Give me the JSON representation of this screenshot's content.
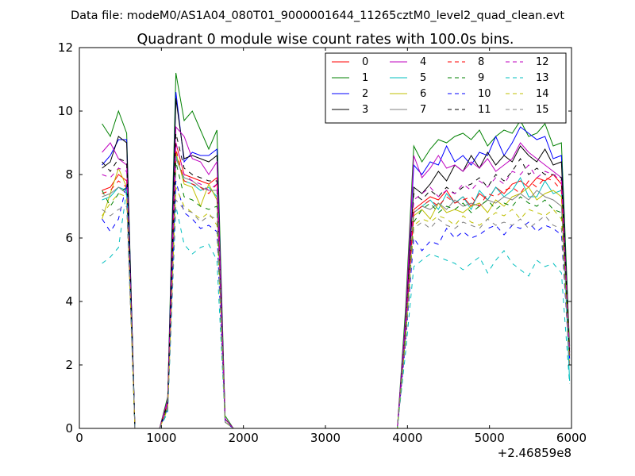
{
  "suptitle": "Data file: modeM0/AS1A04_080T01_9000001644_11265cztM0_level2_quad_clean.evt",
  "chart_data": {
    "type": "line",
    "title": "Quadrant 0 module wise count rates with 100.0s bins.",
    "xlabel": "",
    "ylabel": "",
    "x_offset_label": "+2.46859e8",
    "xlim": [
      0,
      6000
    ],
    "ylim": [
      0,
      12
    ],
    "xticks": [
      0,
      1000,
      2000,
      3000,
      4000,
      5000,
      6000
    ],
    "yticks": [
      0,
      2,
      4,
      6,
      8,
      10,
      12
    ],
    "grid": false,
    "legend_position": "top-right",
    "legend_ncols": 4,
    "x": [
      277,
      377,
      477,
      577,
      677,
      777,
      877,
      977,
      1077,
      1177,
      1277,
      1377,
      1477,
      1577,
      1677,
      1777,
      1877,
      1977,
      2077,
      2177,
      2277,
      2377,
      2477,
      2577,
      2677,
      2777,
      2877,
      2977,
      3077,
      3177,
      3277,
      3377,
      3477,
      3577,
      3677,
      3777,
      3877,
      3977,
      4077,
      4177,
      4277,
      4377,
      4477,
      4577,
      4677,
      4777,
      4877,
      4977,
      5077,
      5177,
      5277,
      5377,
      5477,
      5577,
      5677,
      5777,
      5877,
      5977
    ],
    "series": [
      {
        "name": "0",
        "color": "#ff0000",
        "dash": "solid",
        "values": [
          7.5,
          7.6,
          8.0,
          7.8,
          0,
          0,
          0,
          0,
          0.8,
          9.0,
          8.0,
          7.9,
          7.8,
          7.7,
          7.9,
          0.3,
          0,
          0,
          0,
          0,
          0,
          0,
          0,
          0,
          0,
          0,
          0,
          0,
          0,
          0,
          0,
          0,
          0,
          0,
          0,
          0,
          0,
          3.2,
          6.9,
          7.1,
          7.3,
          7.2,
          7.5,
          7.1,
          7.3,
          7.0,
          7.4,
          7.2,
          7.6,
          7.4,
          7.7,
          7.8,
          7.6,
          7.9,
          7.8,
          8.0,
          7.7,
          2.5
        ]
      },
      {
        "name": "1",
        "color": "#008000",
        "dash": "solid",
        "values": [
          9.6,
          9.2,
          10.0,
          9.3,
          0,
          0,
          0,
          0,
          1.0,
          11.2,
          9.7,
          10.0,
          9.4,
          8.8,
          9.4,
          0.4,
          0,
          0,
          0,
          0,
          0,
          0,
          0,
          0,
          0,
          0,
          0,
          0,
          0,
          0,
          0,
          0,
          0,
          0,
          0,
          0,
          0,
          3.8,
          8.9,
          8.4,
          8.8,
          9.1,
          9.0,
          9.2,
          9.3,
          9.1,
          9.4,
          8.9,
          9.2,
          9.4,
          9.3,
          9.7,
          9.2,
          9.3,
          9.6,
          8.9,
          9.0,
          2.6
        ]
      },
      {
        "name": "2",
        "color": "#0000ff",
        "dash": "solid",
        "values": [
          8.3,
          8.6,
          9.1,
          9.1,
          0,
          0,
          0,
          0,
          0.9,
          10.6,
          8.4,
          8.7,
          8.6,
          8.6,
          8.8,
          0.3,
          0,
          0,
          0,
          0,
          0,
          0,
          0,
          0,
          0,
          0,
          0,
          0,
          0,
          0,
          0,
          0,
          0,
          0,
          0,
          0,
          0,
          3.5,
          8.3,
          8.0,
          8.4,
          8.3,
          8.9,
          8.4,
          8.6,
          8.3,
          8.7,
          8.6,
          9.2,
          8.6,
          9.0,
          9.5,
          9.3,
          9.1,
          9.2,
          8.5,
          8.6,
          2.2
        ]
      },
      {
        "name": "3",
        "color": "#000000",
        "dash": "solid",
        "values": [
          8.2,
          8.4,
          9.2,
          9.0,
          0,
          0,
          0,
          0,
          0.8,
          10.4,
          8.5,
          8.6,
          8.5,
          8.4,
          8.6,
          0.3,
          0,
          0,
          0,
          0,
          0,
          0,
          0,
          0,
          0,
          0,
          0,
          0,
          0,
          0,
          0,
          0,
          0,
          0,
          0,
          0,
          0,
          3.4,
          7.6,
          7.4,
          7.7,
          8.1,
          7.8,
          8.3,
          8.1,
          8.6,
          8.2,
          8.7,
          8.3,
          8.6,
          8.4,
          8.9,
          8.6,
          8.4,
          8.8,
          8.3,
          8.4,
          2.3
        ]
      },
      {
        "name": "4",
        "color": "#bf00bf",
        "dash": "solid",
        "values": [
          8.7,
          9.0,
          8.5,
          8.3,
          0,
          0,
          0,
          0,
          0.9,
          9.5,
          9.2,
          8.5,
          8.4,
          8.0,
          8.4,
          0.3,
          0,
          0,
          0,
          0,
          0,
          0,
          0,
          0,
          0,
          0,
          0,
          0,
          0,
          0,
          0,
          0,
          0,
          0,
          0,
          0,
          0,
          3.5,
          8.6,
          7.9,
          8.2,
          8.6,
          8.2,
          8.3,
          8.1,
          8.4,
          8.2,
          8.5,
          8.1,
          8.3,
          8.5,
          9.0,
          8.7,
          8.5,
          8.3,
          8.1,
          7.9,
          2.4
        ]
      },
      {
        "name": "5",
        "color": "#00bfbf",
        "dash": "solid",
        "values": [
          7.2,
          7.3,
          7.6,
          7.5,
          0,
          0,
          0,
          0,
          0.7,
          8.6,
          7.8,
          7.7,
          7.5,
          7.6,
          7.3,
          0.2,
          0,
          0,
          0,
          0,
          0,
          0,
          0,
          0,
          0,
          0,
          0,
          0,
          0,
          0,
          0,
          0,
          0,
          0,
          0,
          0,
          0,
          3.0,
          6.8,
          7.0,
          7.2,
          6.9,
          7.4,
          7.1,
          7.3,
          6.9,
          7.5,
          7.2,
          7.6,
          7.3,
          7.5,
          7.9,
          7.3,
          7.3,
          7.8,
          7.4,
          7.5,
          1.5
        ]
      },
      {
        "name": "6",
        "color": "#bfbf00",
        "dash": "solid",
        "values": [
          6.6,
          7.4,
          8.2,
          7.6,
          0,
          0,
          0,
          0,
          0.7,
          8.7,
          7.7,
          7.6,
          7.0,
          7.7,
          7.2,
          0.2,
          0,
          0,
          0,
          0,
          0,
          0,
          0,
          0,
          0,
          0,
          0,
          0,
          0,
          0,
          0,
          0,
          0,
          0,
          0,
          0,
          0,
          2.9,
          6.7,
          6.9,
          6.6,
          7.1,
          6.8,
          6.9,
          6.8,
          7.0,
          7.1,
          6.8,
          7.2,
          7.0,
          7.3,
          7.4,
          7.6,
          7.2,
          7.4,
          7.5,
          7.3,
          2.3
        ]
      },
      {
        "name": "7",
        "color": "#808080",
        "dash": "solid",
        "values": [
          7.3,
          7.4,
          7.6,
          7.4,
          0,
          0,
          0,
          0,
          0.7,
          8.5,
          7.9,
          7.8,
          7.6,
          7.5,
          7.5,
          0.2,
          0,
          0,
          0,
          0,
          0,
          0,
          0,
          0,
          0,
          0,
          0,
          0,
          0,
          0,
          0,
          0,
          0,
          0,
          0,
          0,
          0,
          3.0,
          6.8,
          7.0,
          6.9,
          7.1,
          6.9,
          7.2,
          7.0,
          7.1,
          7.0,
          7.2,
          7.1,
          7.3,
          7.2,
          7.4,
          7.2,
          7.5,
          7.3,
          7.2,
          7.0,
          2.4
        ]
      },
      {
        "name": "8",
        "color": "#ff0000",
        "dash": "dashed",
        "values": [
          7.4,
          7.5,
          7.8,
          7.6,
          0,
          0,
          0,
          0,
          0.8,
          8.8,
          7.8,
          7.7,
          7.6,
          7.4,
          7.7,
          0.3,
          0,
          0,
          0,
          0,
          0,
          0,
          0,
          0,
          0,
          0,
          0,
          0,
          0,
          0,
          0,
          0,
          0,
          0,
          0,
          0,
          0,
          3.1,
          6.8,
          7.0,
          7.2,
          7.0,
          7.3,
          7.1,
          7.2,
          7.3,
          7.0,
          7.4,
          7.3,
          7.5,
          7.6,
          7.4,
          7.8,
          7.6,
          7.9,
          7.8,
          7.5,
          2.3
        ]
      },
      {
        "name": "9",
        "color": "#008000",
        "dash": "dashed",
        "values": [
          7.5,
          7.0,
          7.4,
          7.6,
          0,
          0,
          0,
          0,
          0.7,
          8.4,
          7.3,
          7.2,
          7.0,
          6.9,
          7.0,
          0.2,
          0,
          0,
          0,
          0,
          0,
          0,
          0,
          0,
          0,
          0,
          0,
          0,
          0,
          0,
          0,
          0,
          0,
          0,
          0,
          0,
          0,
          2.9,
          6.5,
          6.9,
          7.1,
          6.8,
          7.0,
          6.9,
          7.1,
          6.8,
          7.0,
          7.2,
          6.9,
          7.1,
          7.0,
          7.3,
          7.1,
          7.0,
          7.2,
          6.9,
          6.8,
          2.2
        ]
      },
      {
        "name": "10",
        "color": "#0000ff",
        "dash": "dashed",
        "values": [
          6.6,
          6.2,
          6.6,
          7.7,
          0,
          0,
          0,
          0,
          0.6,
          7.8,
          6.8,
          6.6,
          6.3,
          6.4,
          6.2,
          0.2,
          0,
          0,
          0,
          0,
          0,
          0,
          0,
          0,
          0,
          0,
          0,
          0,
          0,
          0,
          0,
          0,
          0,
          0,
          0,
          0,
          0,
          2.7,
          6.0,
          5.6,
          5.9,
          5.8,
          6.3,
          6.0,
          6.2,
          6.0,
          6.1,
          6.3,
          6.4,
          6.1,
          6.4,
          6.3,
          6.5,
          6.2,
          6.4,
          6.3,
          6.1,
          2.0
        ]
      },
      {
        "name": "11",
        "color": "#000000",
        "dash": "dashed",
        "values": [
          8.4,
          8.1,
          8.5,
          8.4,
          0,
          0,
          0,
          0,
          0.8,
          9.3,
          8.2,
          8.0,
          7.9,
          7.8,
          7.8,
          0.3,
          0,
          0,
          0,
          0,
          0,
          0,
          0,
          0,
          0,
          0,
          0,
          0,
          0,
          0,
          0,
          0,
          0,
          0,
          0,
          0,
          0,
          3.3,
          7.4,
          7.2,
          7.5,
          7.3,
          7.6,
          7.4,
          7.6,
          7.7,
          7.9,
          7.6,
          8.0,
          7.8,
          8.1,
          8.5,
          8.0,
          8.2,
          8.0,
          8.0,
          7.9,
          2.3
        ]
      },
      {
        "name": "12",
        "color": "#bf00bf",
        "dash": "dashed",
        "values": [
          8.0,
          7.9,
          8.2,
          8.1,
          0,
          0,
          0,
          0,
          0.8,
          9.0,
          8.0,
          7.8,
          7.7,
          7.5,
          7.7,
          0.3,
          0,
          0,
          0,
          0,
          0,
          0,
          0,
          0,
          0,
          0,
          0,
          0,
          0,
          0,
          0,
          0,
          0,
          0,
          0,
          0,
          0,
          3.2,
          7.2,
          7.4,
          7.6,
          7.3,
          7.5,
          7.4,
          7.7,
          7.5,
          7.8,
          7.6,
          7.9,
          7.7,
          8.1,
          8.0,
          8.3,
          7.9,
          8.1,
          8.0,
          7.8,
          2.4
        ]
      },
      {
        "name": "13",
        "color": "#00bfbf",
        "dash": "dashed",
        "values": [
          5.2,
          5.4,
          5.7,
          7.5,
          0,
          0,
          0,
          0,
          0.5,
          7.0,
          5.8,
          5.5,
          5.7,
          5.8,
          5.3,
          0.2,
          0,
          0,
          0,
          0,
          0,
          0,
          0,
          0,
          0,
          0,
          0,
          0,
          0,
          0,
          0,
          0,
          0,
          0,
          0,
          0,
          0,
          2.4,
          5.1,
          5.3,
          5.5,
          5.4,
          5.3,
          5.2,
          5.0,
          5.2,
          5.4,
          4.9,
          5.3,
          5.6,
          5.2,
          5.0,
          4.8,
          5.3,
          5.1,
          5.2,
          4.9,
          1.4
        ]
      },
      {
        "name": "14",
        "color": "#bfbf00",
        "dash": "dashed",
        "values": [
          6.7,
          7.1,
          7.4,
          7.3,
          0,
          0,
          0,
          0,
          0.6,
          7.6,
          7.0,
          6.8,
          6.6,
          6.8,
          6.4,
          0.2,
          0,
          0,
          0,
          0,
          0,
          0,
          0,
          0,
          0,
          0,
          0,
          0,
          0,
          0,
          0,
          0,
          0,
          0,
          0,
          0,
          0,
          2.8,
          6.4,
          6.6,
          6.5,
          6.7,
          6.6,
          6.4,
          6.7,
          6.5,
          6.4,
          6.6,
          6.8,
          6.7,
          6.9,
          6.6,
          6.9,
          6.8,
          6.7,
          6.9,
          6.6,
          2.0
        ]
      },
      {
        "name": "15",
        "color": "#808080",
        "dash": "dashed",
        "values": [
          6.9,
          6.7,
          6.9,
          7.0,
          0,
          0,
          0,
          0,
          0.6,
          7.2,
          6.9,
          6.8,
          6.5,
          6.7,
          6.6,
          0.2,
          0,
          0,
          0,
          0,
          0,
          0,
          0,
          0,
          0,
          0,
          0,
          0,
          0,
          0,
          0,
          0,
          0,
          0,
          0,
          0,
          0,
          2.7,
          6.3,
          6.5,
          6.3,
          6.6,
          6.4,
          6.3,
          6.5,
          6.4,
          6.3,
          6.6,
          6.4,
          6.5,
          6.4,
          6.6,
          6.3,
          6.5,
          6.7,
          6.4,
          6.3,
          2.0
        ]
      }
    ]
  }
}
